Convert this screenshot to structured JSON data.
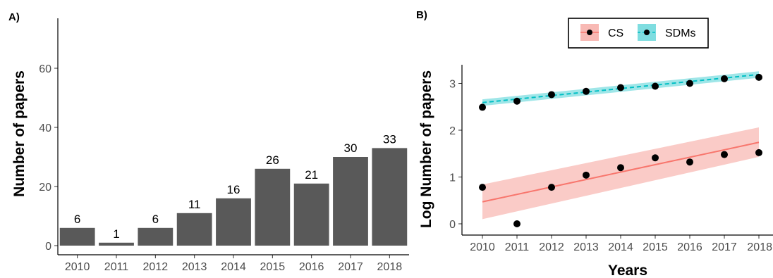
{
  "chart_data": [
    {
      "panel_label": "A)",
      "type": "bar",
      "title": "",
      "xlabel": "",
      "ylabel": "Number of papers",
      "categories": [
        "2010",
        "2011",
        "2012",
        "2013",
        "2014",
        "2015",
        "2016",
        "2017",
        "2018"
      ],
      "values": [
        6,
        1,
        6,
        11,
        16,
        26,
        21,
        30,
        33
      ],
      "data_labels": [
        "6",
        "1",
        "6",
        "11",
        "16",
        "26",
        "21",
        "30",
        "33"
      ],
      "ylim": [
        0,
        70
      ],
      "yticks": [
        0,
        20,
        40,
        60
      ],
      "ytick_labels": [
        "0",
        "20",
        "40",
        "60"
      ],
      "bar_color": "#595959",
      "grid": false,
      "legend": "none"
    },
    {
      "panel_label": "B)",
      "type": "scatter",
      "title": "",
      "xlabel": "Years",
      "ylabel": "Log Number of papers",
      "x": [
        2010,
        2011,
        2012,
        2013,
        2014,
        2015,
        2016,
        2017,
        2018
      ],
      "xtick_labels": [
        "2010",
        "2011",
        "2012",
        "2013",
        "2014",
        "2015",
        "2016",
        "2017",
        "2018"
      ],
      "xlim": [
        2009.7,
        2018.1
      ],
      "ylim": [
        -0.15,
        3.45
      ],
      "yticks": [
        0,
        1,
        2,
        3
      ],
      "ytick_labels": [
        "0",
        "1",
        "2",
        "3"
      ],
      "grid": false,
      "legend": "top, boxed, horizontal",
      "series": [
        {
          "name": "CS",
          "values": [
            0.78,
            0.0,
            0.78,
            1.04,
            1.2,
            1.41,
            1.32,
            1.48,
            1.52
          ],
          "fit_start": 0.47,
          "fit_end": 1.74,
          "band_start": [
            0.1,
            0.84
          ],
          "band_end": [
            1.43,
            2.06
          ],
          "line_style": "solid",
          "color": "#f8766d",
          "band_color": "#f8b9b4"
        },
        {
          "name": "SDMs",
          "values": [
            2.49,
            2.62,
            2.76,
            2.83,
            2.91,
            2.94,
            3.0,
            3.1,
            3.13
          ],
          "fit_start": 2.59,
          "fit_end": 3.19,
          "band_start": [
            2.52,
            2.66
          ],
          "band_end": [
            3.12,
            3.26
          ],
          "line_style": "dashed",
          "color": "#00bfc4",
          "band_color": "#7fdde0"
        }
      ],
      "point_color": "#000000"
    }
  ]
}
